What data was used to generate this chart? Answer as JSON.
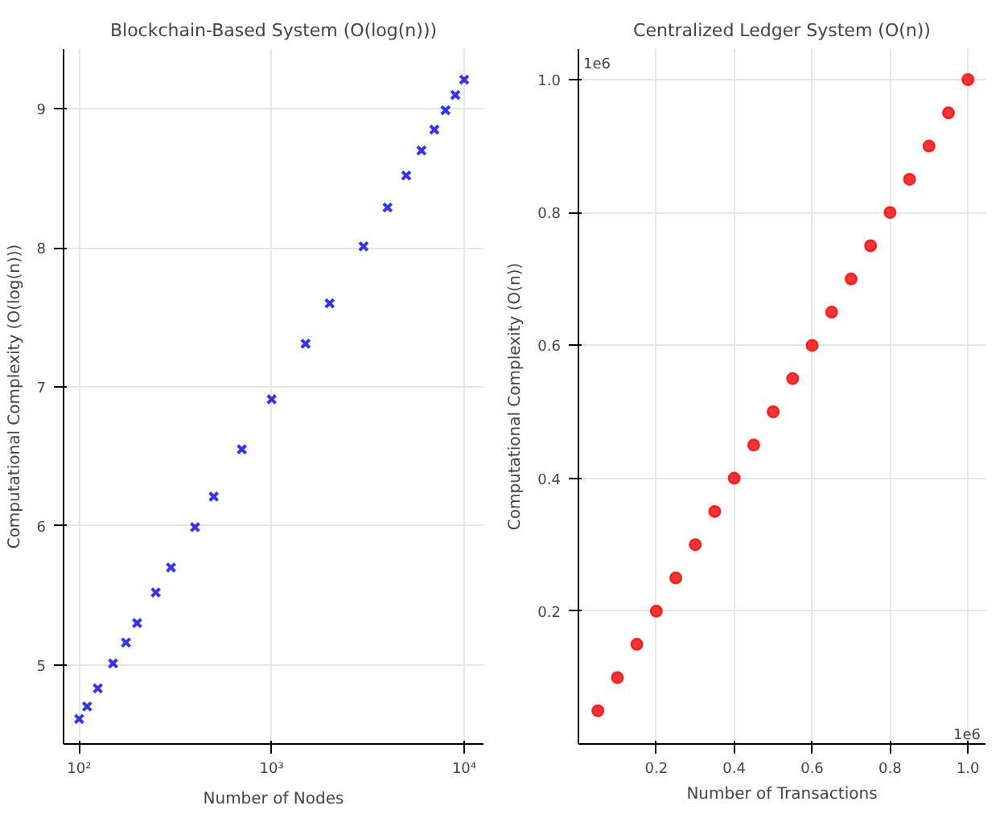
{
  "chart_data": [
    {
      "type": "scatter",
      "title": "Blockchain-Based System (O(log(n)))",
      "xlabel": "Number of Nodes",
      "ylabel": "Computational Complexity (O(log(n)))",
      "log": "x",
      "grid": true,
      "marker": "cross",
      "xlim": [
        83,
        12600
      ],
      "xticks": [
        {
          "value": 100,
          "label": "10²"
        },
        {
          "value": 1000,
          "label": "10³"
        },
        {
          "value": 10000,
          "label": "10⁴"
        }
      ],
      "ylim": [
        4.43,
        9.43
      ],
      "yticks": [
        5,
        6,
        7,
        8,
        9
      ],
      "x": [
        100,
        110,
        125,
        150,
        175,
        200,
        250,
        300,
        400,
        500,
        700,
        1000,
        1500,
        2000,
        3000,
        4000,
        5000,
        6000,
        7000,
        8000,
        9000,
        10000
      ],
      "series": [
        {
          "color": "#0000ff",
          "values": [
            4.61,
            4.7,
            4.83,
            5.01,
            5.16,
            5.3,
            5.52,
            5.7,
            5.99,
            6.21,
            6.55,
            6.91,
            7.31,
            7.6,
            8.01,
            8.29,
            8.52,
            8.7,
            8.85,
            8.99,
            9.1,
            9.21
          ]
        }
      ]
    },
    {
      "type": "scatter",
      "title": "Centralized Ledger System (O(n))",
      "xlabel": "Number of Transactions",
      "ylabel": "Computational Complexity (O(n))",
      "grid": true,
      "marker": "circle",
      "xlim": [
        0,
        1.045
      ],
      "xticks": [
        {
          "value": 0.2,
          "label": "0.2"
        },
        {
          "value": 0.4,
          "label": "0.4"
        },
        {
          "value": 0.6,
          "label": "0.6"
        },
        {
          "value": 0.8,
          "label": "0.8"
        },
        {
          "value": 1.0,
          "label": "1.0"
        }
      ],
      "ylim": [
        0,
        1.046
      ],
      "yticks": [
        {
          "value": 0.2,
          "label": "0.2"
        },
        {
          "value": 0.4,
          "label": "0.4"
        },
        {
          "value": 0.6,
          "label": "0.6"
        },
        {
          "value": 0.8,
          "label": "0.8"
        },
        {
          "value": 1.0,
          "label": "1.0"
        }
      ],
      "annotations": [
        "1e6",
        "1e6"
      ],
      "x": [
        0.05,
        0.1,
        0.15,
        0.2,
        0.25,
        0.3,
        0.35,
        0.4,
        0.45,
        0.5,
        0.55,
        0.6,
        0.65,
        0.7,
        0.75,
        0.8,
        0.85,
        0.9,
        0.95,
        1.0
      ],
      "series": [
        {
          "color": "#ff0000",
          "values": [
            0.05,
            0.1,
            0.15,
            0.2,
            0.25,
            0.3,
            0.35,
            0.4,
            0.45,
            0.5,
            0.55,
            0.6,
            0.65,
            0.7,
            0.75,
            0.8,
            0.85,
            0.9,
            0.95,
            1.0
          ]
        }
      ]
    }
  ]
}
